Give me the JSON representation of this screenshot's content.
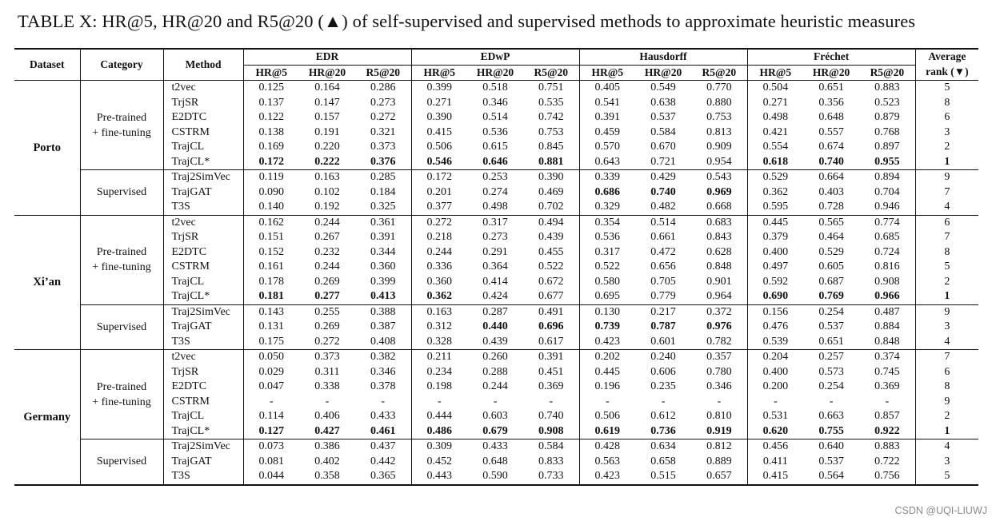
{
  "caption": "TABLE X: HR@5, HR@20 and R5@20 (▲) of self-supervised and supervised methods to approximate heuristic measures",
  "headers": {
    "dataset": "Dataset",
    "category": "Category",
    "method": "Method",
    "groups": [
      "EDR",
      "EDwP",
      "Hausdorff",
      "Fréchet"
    ],
    "metrics": [
      "HR@5",
      "HR@20",
      "R5@20"
    ],
    "avg_rank_line1": "Average",
    "avg_rank_line2": "rank (▼)"
  },
  "datasets": [
    {
      "name": "Porto",
      "blocks": [
        {
          "category": [
            "Pre-trained",
            "+ fine-tuning"
          ],
          "rows": [
            {
              "method": "t2vec",
              "values": [
                "0.125",
                "0.164",
                "0.286",
                "0.399",
                "0.518",
                "0.751",
                "0.405",
                "0.549",
                "0.770",
                "0.504",
                "0.651",
                "0.883"
              ],
              "bold": [],
              "rank": "5"
            },
            {
              "method": "TrjSR",
              "values": [
                "0.137",
                "0.147",
                "0.273",
                "0.271",
                "0.346",
                "0.535",
                "0.541",
                "0.638",
                "0.880",
                "0.271",
                "0.356",
                "0.523"
              ],
              "bold": [],
              "rank": "8"
            },
            {
              "method": "E2DTC",
              "values": [
                "0.122",
                "0.157",
                "0.272",
                "0.390",
                "0.514",
                "0.742",
                "0.391",
                "0.537",
                "0.753",
                "0.498",
                "0.648",
                "0.879"
              ],
              "bold": [],
              "rank": "6"
            },
            {
              "method": "CSTRM",
              "values": [
                "0.138",
                "0.191",
                "0.321",
                "0.415",
                "0.536",
                "0.753",
                "0.459",
                "0.584",
                "0.813",
                "0.421",
                "0.557",
                "0.768"
              ],
              "bold": [],
              "rank": "3"
            },
            {
              "method": "TrajCL",
              "values": [
                "0.169",
                "0.220",
                "0.373",
                "0.506",
                "0.615",
                "0.845",
                "0.570",
                "0.670",
                "0.909",
                "0.554",
                "0.674",
                "0.897"
              ],
              "bold": [],
              "rank": "2"
            },
            {
              "method": "TrajCL*",
              "values": [
                "0.172",
                "0.222",
                "0.376",
                "0.546",
                "0.646",
                "0.881",
                "0.643",
                "0.721",
                "0.954",
                "0.618",
                "0.740",
                "0.955"
              ],
              "bold": [
                0,
                1,
                2,
                3,
                4,
                5,
                9,
                10,
                11
              ],
              "rank": "1",
              "rank_bold": true
            }
          ]
        },
        {
          "category": [
            "Supervised"
          ],
          "rows": [
            {
              "method": "Traj2SimVec",
              "values": [
                "0.119",
                "0.163",
                "0.285",
                "0.172",
                "0.253",
                "0.390",
                "0.339",
                "0.429",
                "0.543",
                "0.529",
                "0.664",
                "0.894"
              ],
              "bold": [],
              "rank": "9"
            },
            {
              "method": "TrajGAT",
              "values": [
                "0.090",
                "0.102",
                "0.184",
                "0.201",
                "0.274",
                "0.469",
                "0.686",
                "0.740",
                "0.969",
                "0.362",
                "0.403",
                "0.704"
              ],
              "bold": [
                6,
                7,
                8
              ],
              "rank": "7"
            },
            {
              "method": "T3S",
              "values": [
                "0.140",
                "0.192",
                "0.325",
                "0.377",
                "0.498",
                "0.702",
                "0.329",
                "0.482",
                "0.668",
                "0.595",
                "0.728",
                "0.946"
              ],
              "bold": [],
              "rank": "4"
            }
          ]
        }
      ]
    },
    {
      "name": "Xi’an",
      "blocks": [
        {
          "category": [
            "Pre-trained",
            "+ fine-tuning"
          ],
          "rows": [
            {
              "method": "t2vec",
              "values": [
                "0.162",
                "0.244",
                "0.361",
                "0.272",
                "0.317",
                "0.494",
                "0.354",
                "0.514",
                "0.683",
                "0.445",
                "0.565",
                "0.774"
              ],
              "bold": [],
              "rank": "6"
            },
            {
              "method": "TrjSR",
              "values": [
                "0.151",
                "0.267",
                "0.391",
                "0.218",
                "0.273",
                "0.439",
                "0.536",
                "0.661",
                "0.843",
                "0.379",
                "0.464",
                "0.685"
              ],
              "bold": [],
              "rank": "7"
            },
            {
              "method": "E2DTC",
              "values": [
                "0.152",
                "0.232",
                "0.344",
                "0.244",
                "0.291",
                "0.455",
                "0.317",
                "0.472",
                "0.628",
                "0.400",
                "0.529",
                "0.724"
              ],
              "bold": [],
              "rank": "8"
            },
            {
              "method": "CSTRM",
              "values": [
                "0.161",
                "0.244",
                "0.360",
                "0.336",
                "0.364",
                "0.522",
                "0.522",
                "0.656",
                "0.848",
                "0.497",
                "0.605",
                "0.816"
              ],
              "bold": [],
              "rank": "5"
            },
            {
              "method": "TrajCL",
              "values": [
                "0.178",
                "0.269",
                "0.399",
                "0.360",
                "0.414",
                "0.672",
                "0.580",
                "0.705",
                "0.901",
                "0.592",
                "0.687",
                "0.908"
              ],
              "bold": [],
              "rank": "2"
            },
            {
              "method": "TrajCL*",
              "values": [
                "0.181",
                "0.277",
                "0.413",
                "0.362",
                "0.424",
                "0.677",
                "0.695",
                "0.779",
                "0.964",
                "0.690",
                "0.769",
                "0.966"
              ],
              "bold": [
                0,
                1,
                2,
                3,
                9,
                10,
                11
              ],
              "rank": "1",
              "rank_bold": true
            }
          ]
        },
        {
          "category": [
            "Supervised"
          ],
          "rows": [
            {
              "method": "Traj2SimVec",
              "values": [
                "0.143",
                "0.255",
                "0.388",
                "0.163",
                "0.287",
                "0.491",
                "0.130",
                "0.217",
                "0.372",
                "0.156",
                "0.254",
                "0.487"
              ],
              "bold": [],
              "rank": "9"
            },
            {
              "method": "TrajGAT",
              "values": [
                "0.131",
                "0.269",
                "0.387",
                "0.312",
                "0.440",
                "0.696",
                "0.739",
                "0.787",
                "0.976",
                "0.476",
                "0.537",
                "0.884"
              ],
              "bold": [
                4,
                5,
                6,
                7,
                8
              ],
              "rank": "3"
            },
            {
              "method": "T3S",
              "values": [
                "0.175",
                "0.272",
                "0.408",
                "0.328",
                "0.439",
                "0.617",
                "0.423",
                "0.601",
                "0.782",
                "0.539",
                "0.651",
                "0.848"
              ],
              "bold": [],
              "rank": "4"
            }
          ]
        }
      ]
    },
    {
      "name": "Germany",
      "blocks": [
        {
          "category": [
            "Pre-trained",
            "+ fine-tuning"
          ],
          "rows": [
            {
              "method": "t2vec",
              "values": [
                "0.050",
                "0.373",
                "0.382",
                "0.211",
                "0.260",
                "0.391",
                "0.202",
                "0.240",
                "0.357",
                "0.204",
                "0.257",
                "0.374"
              ],
              "bold": [],
              "rank": "7"
            },
            {
              "method": "TrjSR",
              "values": [
                "0.029",
                "0.311",
                "0.346",
                "0.234",
                "0.288",
                "0.451",
                "0.445",
                "0.606",
                "0.780",
                "0.400",
                "0.573",
                "0.745"
              ],
              "bold": [],
              "rank": "6"
            },
            {
              "method": "E2DTC",
              "values": [
                "0.047",
                "0.338",
                "0.378",
                "0.198",
                "0.244",
                "0.369",
                "0.196",
                "0.235",
                "0.346",
                "0.200",
                "0.254",
                "0.369"
              ],
              "bold": [],
              "rank": "8"
            },
            {
              "method": "CSTRM",
              "values": [
                "-",
                "-",
                "-",
                "-",
                "-",
                "-",
                "-",
                "-",
                "-",
                "-",
                "-",
                "-"
              ],
              "bold": [],
              "rank": "9"
            },
            {
              "method": "TrajCL",
              "values": [
                "0.114",
                "0.406",
                "0.433",
                "0.444",
                "0.603",
                "0.740",
                "0.506",
                "0.612",
                "0.810",
                "0.531",
                "0.663",
                "0.857"
              ],
              "bold": [],
              "rank": "2"
            },
            {
              "method": "TrajCL*",
              "values": [
                "0.127",
                "0.427",
                "0.461",
                "0.486",
                "0.679",
                "0.908",
                "0.619",
                "0.736",
                "0.919",
                "0.620",
                "0.755",
                "0.922"
              ],
              "bold": [
                0,
                1,
                2,
                3,
                4,
                5,
                6,
                7,
                8,
                9,
                10,
                11
              ],
              "rank": "1",
              "rank_bold": true
            }
          ]
        },
        {
          "category": [
            "Supervised"
          ],
          "rows": [
            {
              "method": "Traj2SimVec",
              "values": [
                "0.073",
                "0.386",
                "0.437",
                "0.309",
                "0.433",
                "0.584",
                "0.428",
                "0.634",
                "0.812",
                "0.456",
                "0.640",
                "0.883"
              ],
              "bold": [],
              "rank": "4"
            },
            {
              "method": "TrajGAT",
              "values": [
                "0.081",
                "0.402",
                "0.442",
                "0.452",
                "0.648",
                "0.833",
                "0.563",
                "0.658",
                "0.889",
                "0.411",
                "0.537",
                "0.722"
              ],
              "bold": [],
              "rank": "3"
            },
            {
              "method": "T3S",
              "values": [
                "0.044",
                "0.358",
                "0.365",
                "0.443",
                "0.590",
                "0.733",
                "0.423",
                "0.515",
                "0.657",
                "0.415",
                "0.564",
                "0.756"
              ],
              "bold": [],
              "rank": "5"
            }
          ]
        }
      ]
    }
  ],
  "watermark": "CSDN @UQI-LIUWJ"
}
